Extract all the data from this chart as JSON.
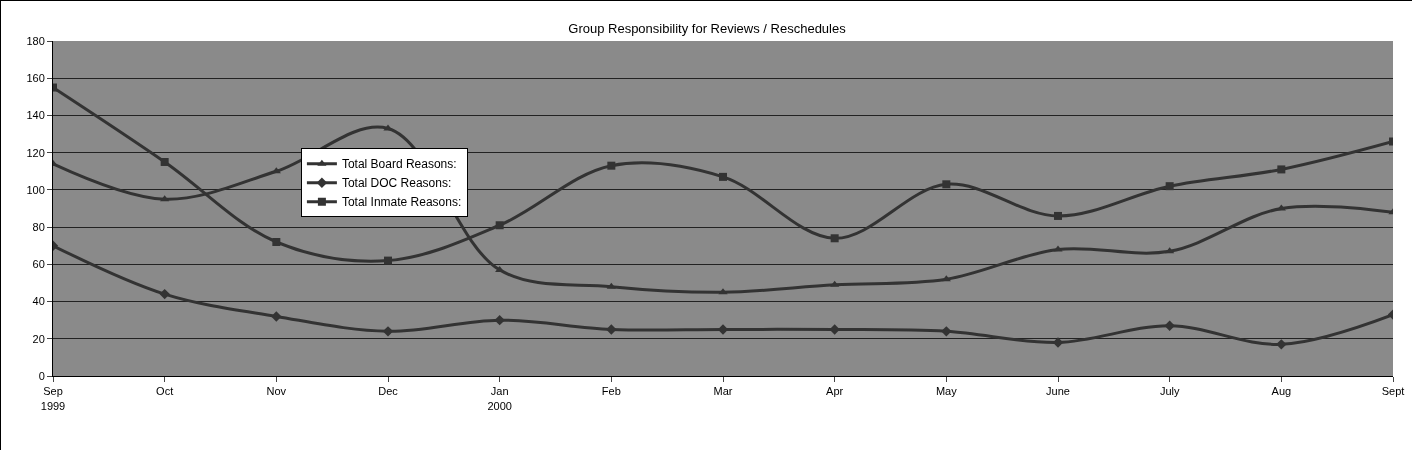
{
  "chart_data": {
    "type": "line",
    "title": "Group Responsibility for Reviews / Reschedules",
    "categories": [
      "Sep\n1999",
      "Oct",
      "Nov",
      "Dec",
      "Jan\n2000",
      "Feb",
      "Mar",
      "Apr",
      "May",
      "June",
      "July",
      "Aug",
      "Sept"
    ],
    "series": [
      {
        "name": "Total Board Reasons:",
        "color": "#333333",
        "marker": "triangle",
        "values": [
          114,
          95,
          110,
          133,
          57,
          48,
          45,
          49,
          52,
          68,
          67,
          90,
          88
        ]
      },
      {
        "name": "Total DOC Reasons:",
        "color": "#333333",
        "marker": "diamond",
        "values": [
          70,
          44,
          32,
          24,
          30,
          25,
          25,
          25,
          24,
          18,
          27,
          17,
          33
        ]
      },
      {
        "name": "Total Inmate Reasons:",
        "color": "#333333",
        "marker": "square",
        "values": [
          155,
          115,
          72,
          62,
          81,
          113,
          107,
          74,
          103,
          86,
          102,
          111,
          126
        ]
      }
    ],
    "ylim": [
      0,
      180
    ],
    "yticks": [
      0,
      20,
      40,
      60,
      80,
      100,
      120,
      140,
      160,
      180
    ],
    "grid": "y",
    "legend": "left",
    "line_style": "solid"
  }
}
